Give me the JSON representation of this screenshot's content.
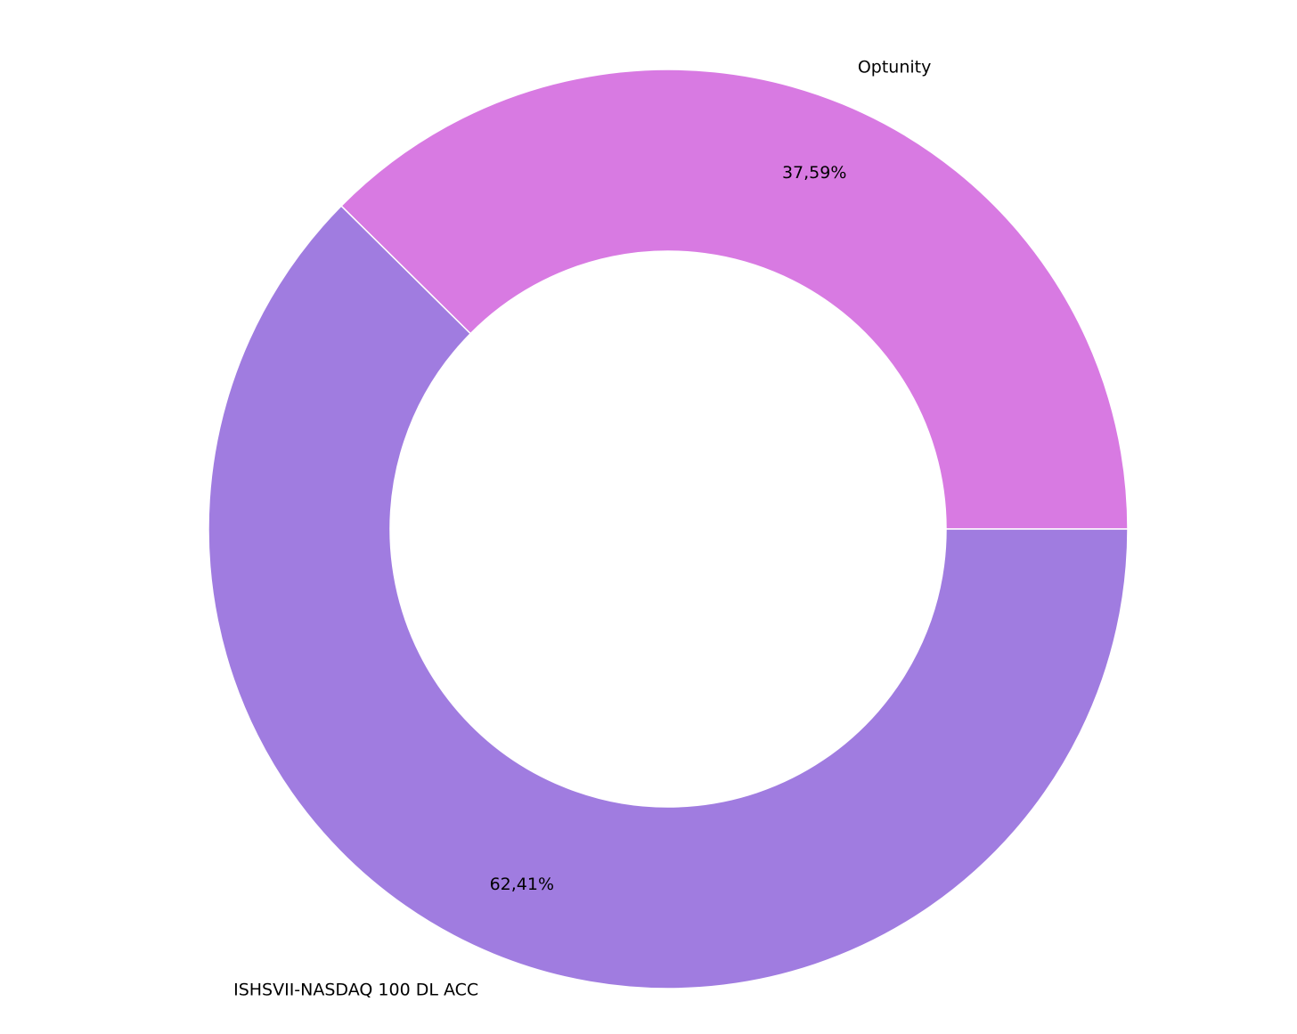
{
  "chart_data": {
    "type": "pie",
    "donut": true,
    "categories": [
      "Optunity",
      "ISHSVII-NASDAQ 100 DL ACC"
    ],
    "values": [
      37.59,
      62.41
    ],
    "value_labels": [
      "37,59%",
      "62,41%"
    ],
    "colors": [
      "#d87ae2",
      "#a07ce0"
    ]
  }
}
